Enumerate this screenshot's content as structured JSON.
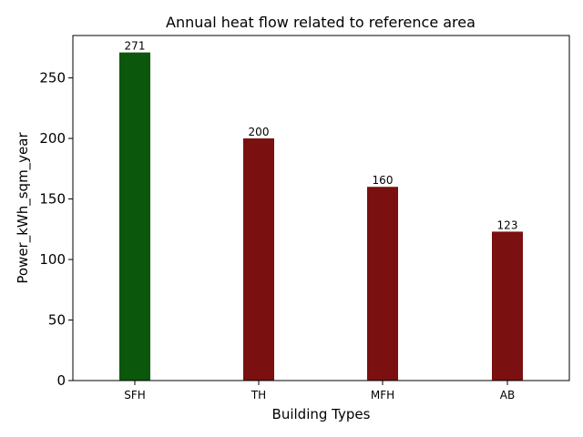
{
  "chart_data": {
    "type": "bar",
    "title": "Annual heat flow related to reference area",
    "xlabel": "Building Types",
    "ylabel": "Power_kWh_sqm_year",
    "categories": [
      "SFH",
      "TH",
      "MFH",
      "AB"
    ],
    "values": [
      271,
      200,
      160,
      123
    ],
    "data_labels": [
      "271",
      "200",
      "160",
      "123"
    ],
    "bar_colors": [
      "#0b570b",
      "#7a1010",
      "#7a1010",
      "#7a1010"
    ],
    "ylim": [
      0,
      285
    ],
    "yticks": [
      0,
      50,
      100,
      150,
      200,
      250
    ],
    "grid": false,
    "legend": "none"
  }
}
